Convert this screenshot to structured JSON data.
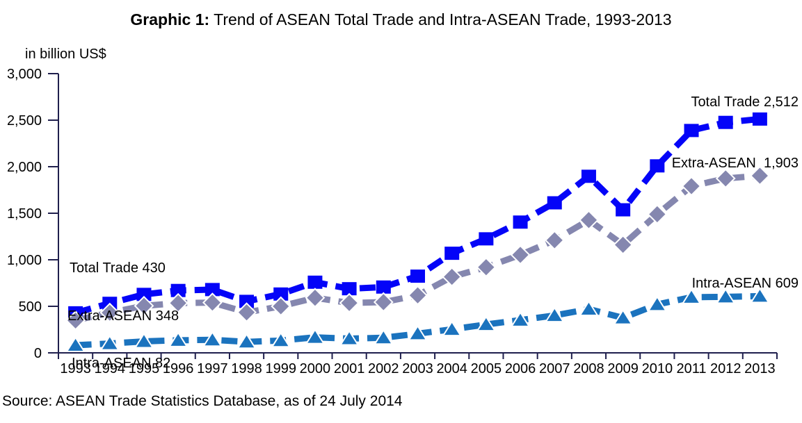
{
  "title": {
    "prefix": "Graphic 1:",
    "rest": " Trend of ASEAN Total Trade and Intra-ASEAN Trade, 1993-2013"
  },
  "y_axis_unit": "in billion US$",
  "source": "Source: ASEAN Trade Statistics Database, as of 24 July 2014",
  "annotations": {
    "start_total": "Total Trade 430",
    "start_extra": "Extra-ASEAN 348",
    "start_intra": "Intra-ASEAN 82",
    "end_total": "Total Trade 2,512",
    "end_extra": "Extra-ASEAN  1,903",
    "end_intra": "Intra-ASEAN 609"
  },
  "chart_data": {
    "type": "line",
    "title": "Graphic 1: Trend of ASEAN Total Trade and Intra-ASEAN Trade, 1993-2013",
    "xlabel": "",
    "ylabel": "in billion US$",
    "ylim": [
      0,
      3000
    ],
    "y_ticks": [
      0,
      500,
      1000,
      1500,
      2000,
      2500,
      3000
    ],
    "grid": false,
    "legend_position": "inline-annotations",
    "axis_color": "#1f1f4d",
    "x": [
      1993,
      1994,
      1995,
      1996,
      1997,
      1998,
      1999,
      2000,
      2001,
      2002,
      2003,
      2004,
      2005,
      2006,
      2007,
      2008,
      2009,
      2010,
      2011,
      2012,
      2013
    ],
    "series": [
      {
        "name": "Total Trade",
        "color": "#0404f8",
        "marker": "square",
        "line_style": "dashed",
        "values": [
          430,
          532,
          628,
          670,
          680,
          553,
          632,
          759,
          689,
          707,
          824,
          1070,
          1225,
          1405,
          1612,
          1897,
          1537,
          2009,
          2389,
          2476,
          2512
        ]
      },
      {
        "name": "Extra-ASEAN",
        "color": "#8587af",
        "marker": "diamond",
        "line_style": "dashed",
        "values": [
          348,
          432,
          505,
          535,
          540,
          435,
          500,
          592,
          536,
          545,
          618,
          817,
          920,
          1053,
          1210,
          1427,
          1161,
          1489,
          1791,
          1874,
          1903
        ]
      },
      {
        "name": "Intra-ASEAN",
        "color": "#1b73be",
        "marker": "triangle",
        "line_style": "dashed",
        "values": [
          82,
          100,
          123,
          135,
          140,
          118,
          132,
          167,
          153,
          162,
          206,
          253,
          305,
          352,
          402,
          470,
          376,
          520,
          598,
          602,
          609
        ]
      }
    ]
  }
}
